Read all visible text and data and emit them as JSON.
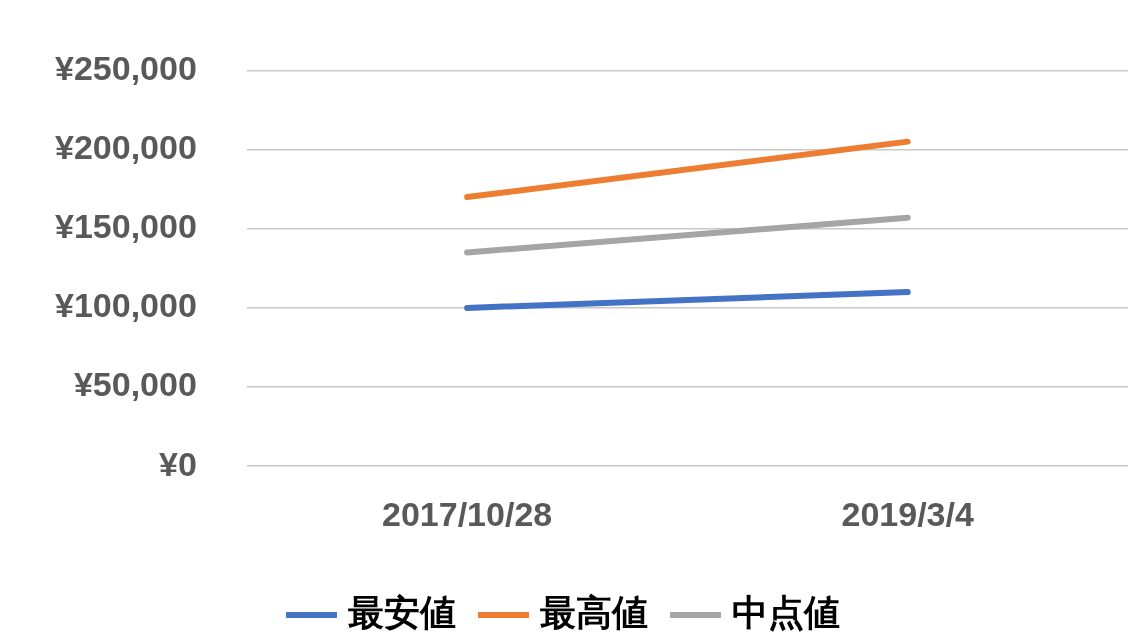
{
  "chart_data": {
    "type": "line",
    "categories": [
      "2017/10/28",
      "2019/3/4"
    ],
    "series": [
      {
        "name": "最安値",
        "color": "#4472c4",
        "values": [
          100000,
          110000
        ]
      },
      {
        "name": "最高値",
        "color": "#ed7d31",
        "values": [
          170000,
          205000
        ]
      },
      {
        "name": "中点値",
        "color": "#a5a5a5",
        "values": [
          135000,
          157000
        ]
      }
    ],
    "ylim": [
      0,
      250000
    ],
    "yticks": [
      {
        "value": 0,
        "label": "¥0"
      },
      {
        "value": 50000,
        "label": "¥50,000"
      },
      {
        "value": 100000,
        "label": "¥100,000"
      },
      {
        "value": 150000,
        "label": "¥150,000"
      },
      {
        "value": 200000,
        "label": "¥200,000"
      },
      {
        "value": 250000,
        "label": "¥250,000"
      }
    ],
    "grid": "y",
    "legend": "bottom",
    "marker": "none",
    "line_style": "solid"
  }
}
